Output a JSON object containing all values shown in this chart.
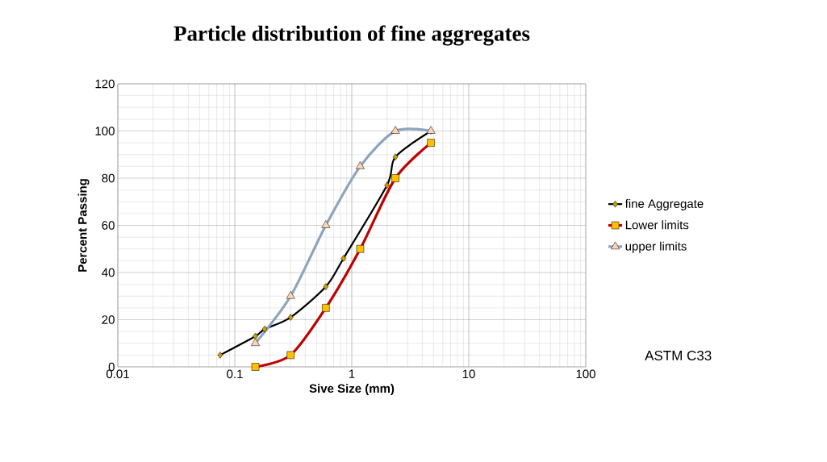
{
  "chart_data": {
    "type": "line",
    "title": "Particle distribution of fine aggregates",
    "xlabel": "Sive Size (mm)",
    "ylabel": "Percent Passing",
    "log": "x",
    "grid": true,
    "legend": "right",
    "xlim": [
      0.01,
      100
    ],
    "xticks": [
      0.01,
      0.1,
      1,
      10,
      100
    ],
    "ylim": [
      0,
      120
    ],
    "yticks": [
      0,
      20,
      40,
      60,
      80,
      100,
      120
    ],
    "annotations": [
      "ASTM C33"
    ],
    "series": [
      {
        "name": "fine Aggregate",
        "color": "#000000",
        "marker": "diamond",
        "x": [
          0.075,
          0.15,
          0.18,
          0.3,
          0.6,
          0.85,
          2,
          2.36,
          4.75
        ],
        "values": [
          5,
          13,
          16,
          21,
          34,
          46,
          77,
          89,
          100
        ]
      },
      {
        "name": "Lower limits",
        "color": "#c00000",
        "marker": "square",
        "x": [
          0.15,
          0.3,
          0.6,
          1.18,
          2.36,
          4.75
        ],
        "values": [
          0,
          5,
          25,
          50,
          80,
          95
        ]
      },
      {
        "name": "upper limits",
        "color": "#8ea4bf",
        "marker": "triangle",
        "x": [
          0.15,
          0.3,
          0.6,
          1.18,
          2.36,
          4.75
        ],
        "values": [
          10,
          30,
          60,
          85,
          100,
          100
        ]
      }
    ]
  }
}
